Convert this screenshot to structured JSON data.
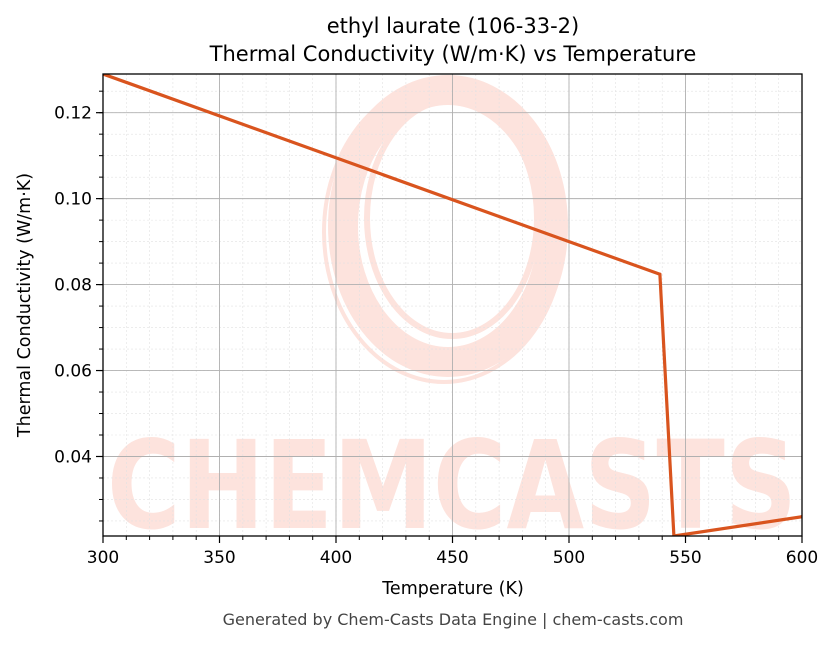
{
  "footer": "Generated by Chem-Casts Data Engine | chem-casts.com",
  "watermark": {
    "text": "CHEMCASTS",
    "color": "#fde3dd",
    "icon": "ring-logo-icon"
  },
  "chart_data": {
    "type": "line",
    "title": "ethyl laurate (106-33-2)",
    "subtitle": "Thermal Conductivity (W/m·K) vs Temperature",
    "xlabel": "Temperature (K)",
    "ylabel": "Thermal Conductivity (W/m·K)",
    "xlim": [
      300,
      600
    ],
    "ylim": [
      0.0215,
      0.129
    ],
    "xticks": [
      300,
      350,
      400,
      450,
      500,
      550,
      600
    ],
    "yticks": [
      0.04,
      0.06,
      0.08,
      0.1,
      0.12
    ],
    "ytick_labels": [
      "0.04",
      "0.06",
      "0.08",
      "0.10",
      "0.12"
    ],
    "grid": true,
    "minor_grid": true,
    "legend": "none",
    "series": [
      {
        "color": "#d9541e",
        "x": [
          300,
          539,
          545,
          600
        ],
        "y": [
          0.129,
          0.0824,
          0.0215,
          0.026
        ]
      }
    ]
  }
}
